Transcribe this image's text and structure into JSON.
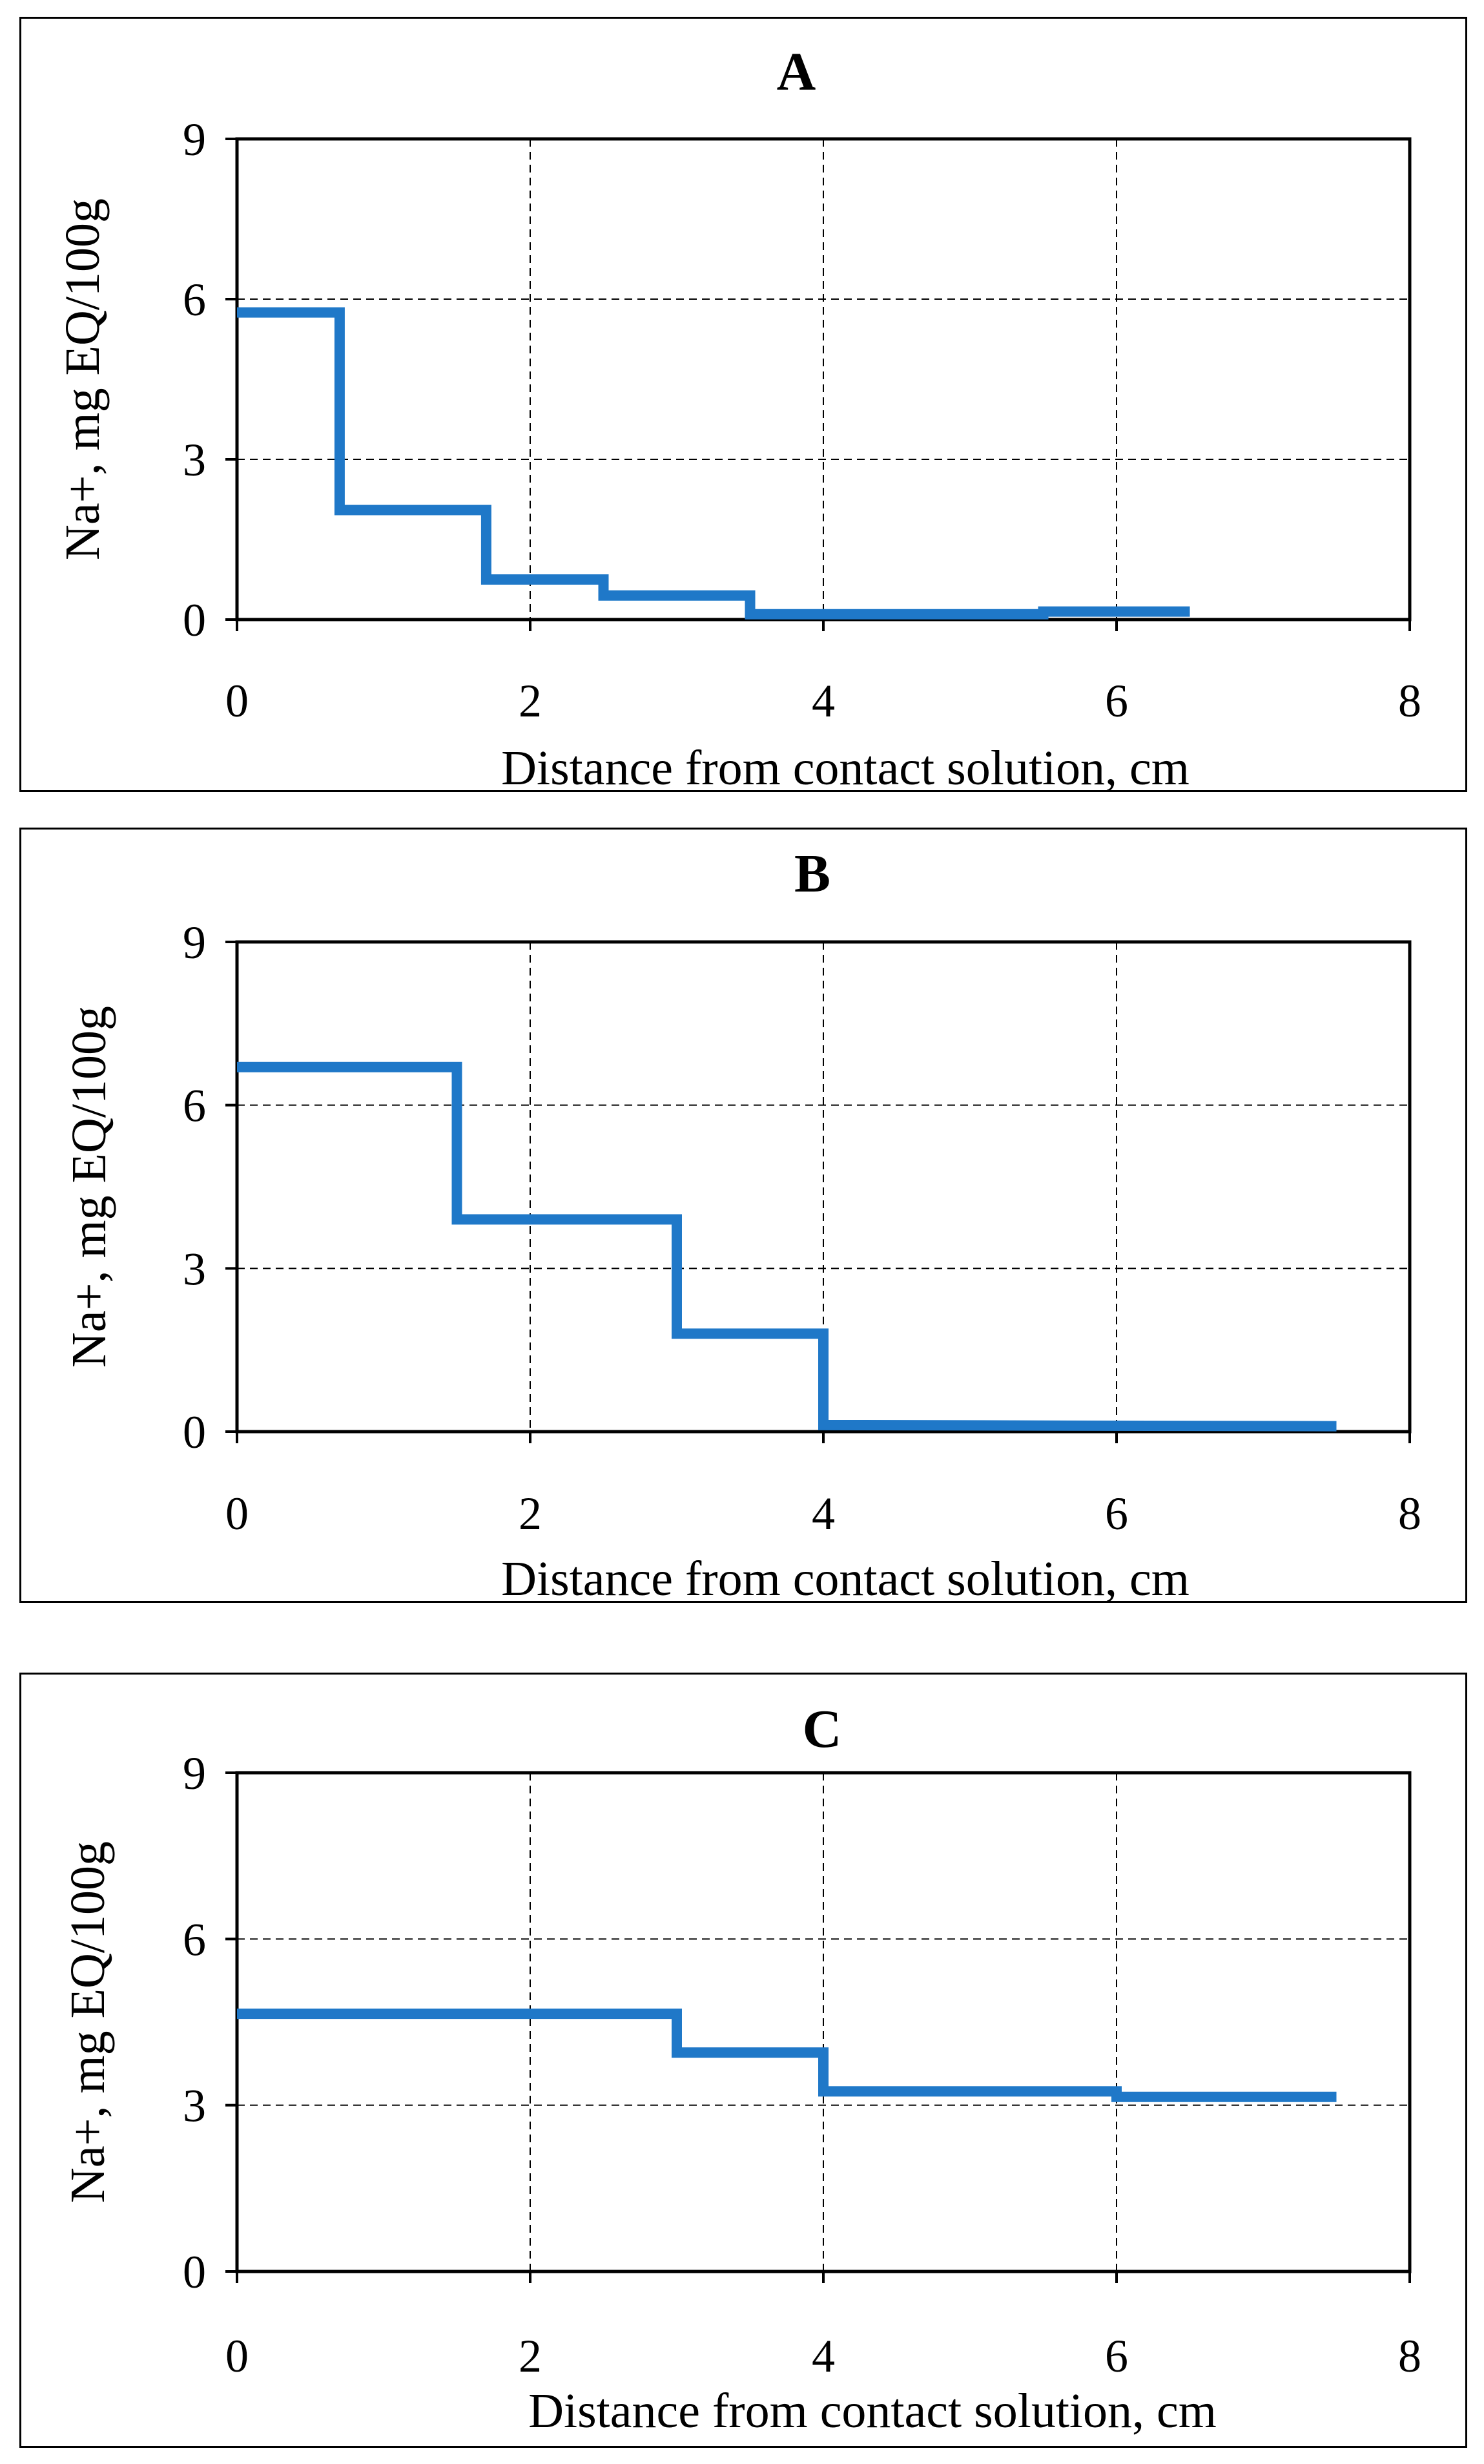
{
  "figure": {
    "series_color": "#1f78c8",
    "grid_color": "#000000"
  },
  "chart_data": [
    {
      "type": "line",
      "style": "step",
      "title": "A",
      "xlabel": "Distance from contact solution, cm",
      "ylabel": "Na+, mg EQ/100g",
      "xlim": [
        0,
        8
      ],
      "ylim": [
        0,
        9
      ],
      "xticks": [
        "0",
        "2",
        "4",
        "6",
        "8"
      ],
      "yticks": [
        "0",
        "3",
        "6",
        "9"
      ],
      "grid": true,
      "series": [
        {
          "name": "Na+",
          "x": [
            0,
            0.7,
            0.7,
            1.7,
            1.7,
            2.5,
            2.5,
            3.5,
            3.5,
            5.5,
            5.5,
            6.5
          ],
          "y": [
            5.75,
            5.75,
            2.05,
            2.05,
            0.75,
            0.75,
            0.45,
            0.45,
            0.1,
            0.1,
            0.15,
            0.15
          ]
        }
      ]
    },
    {
      "type": "line",
      "style": "step",
      "title": "B",
      "xlabel": "Distance from contact solution, cm",
      "ylabel": "Na+, mg EQ/100g",
      "xlim": [
        0,
        8
      ],
      "ylim": [
        0,
        9
      ],
      "xticks": [
        "0",
        "2",
        "4",
        "6",
        "8"
      ],
      "yticks": [
        "0",
        "3",
        "6",
        "9"
      ],
      "grid": true,
      "series": [
        {
          "name": "Na+",
          "x": [
            0,
            1.5,
            1.5,
            3.0,
            3.0,
            4.0,
            4.0,
            7.5
          ],
          "y": [
            6.7,
            6.7,
            3.9,
            3.9,
            1.8,
            1.8,
            0.12,
            0.1
          ]
        }
      ]
    },
    {
      "type": "line",
      "style": "step",
      "title": "C",
      "xlabel": "Distance from contact solution, cm",
      "ylabel": "Na+, mg EQ/100g",
      "xlim": [
        0,
        8
      ],
      "ylim": [
        0,
        9
      ],
      "xticks": [
        "0",
        "2",
        "4",
        "6",
        "8"
      ],
      "yticks": [
        "0",
        "3",
        "6",
        "9"
      ],
      "grid": true,
      "series": [
        {
          "name": "Na+",
          "x": [
            0,
            3.0,
            3.0,
            4.0,
            4.0,
            6.0,
            6.0,
            7.5
          ],
          "y": [
            4.65,
            4.65,
            3.95,
            3.95,
            3.25,
            3.25,
            3.15,
            3.15
          ]
        }
      ]
    }
  ]
}
